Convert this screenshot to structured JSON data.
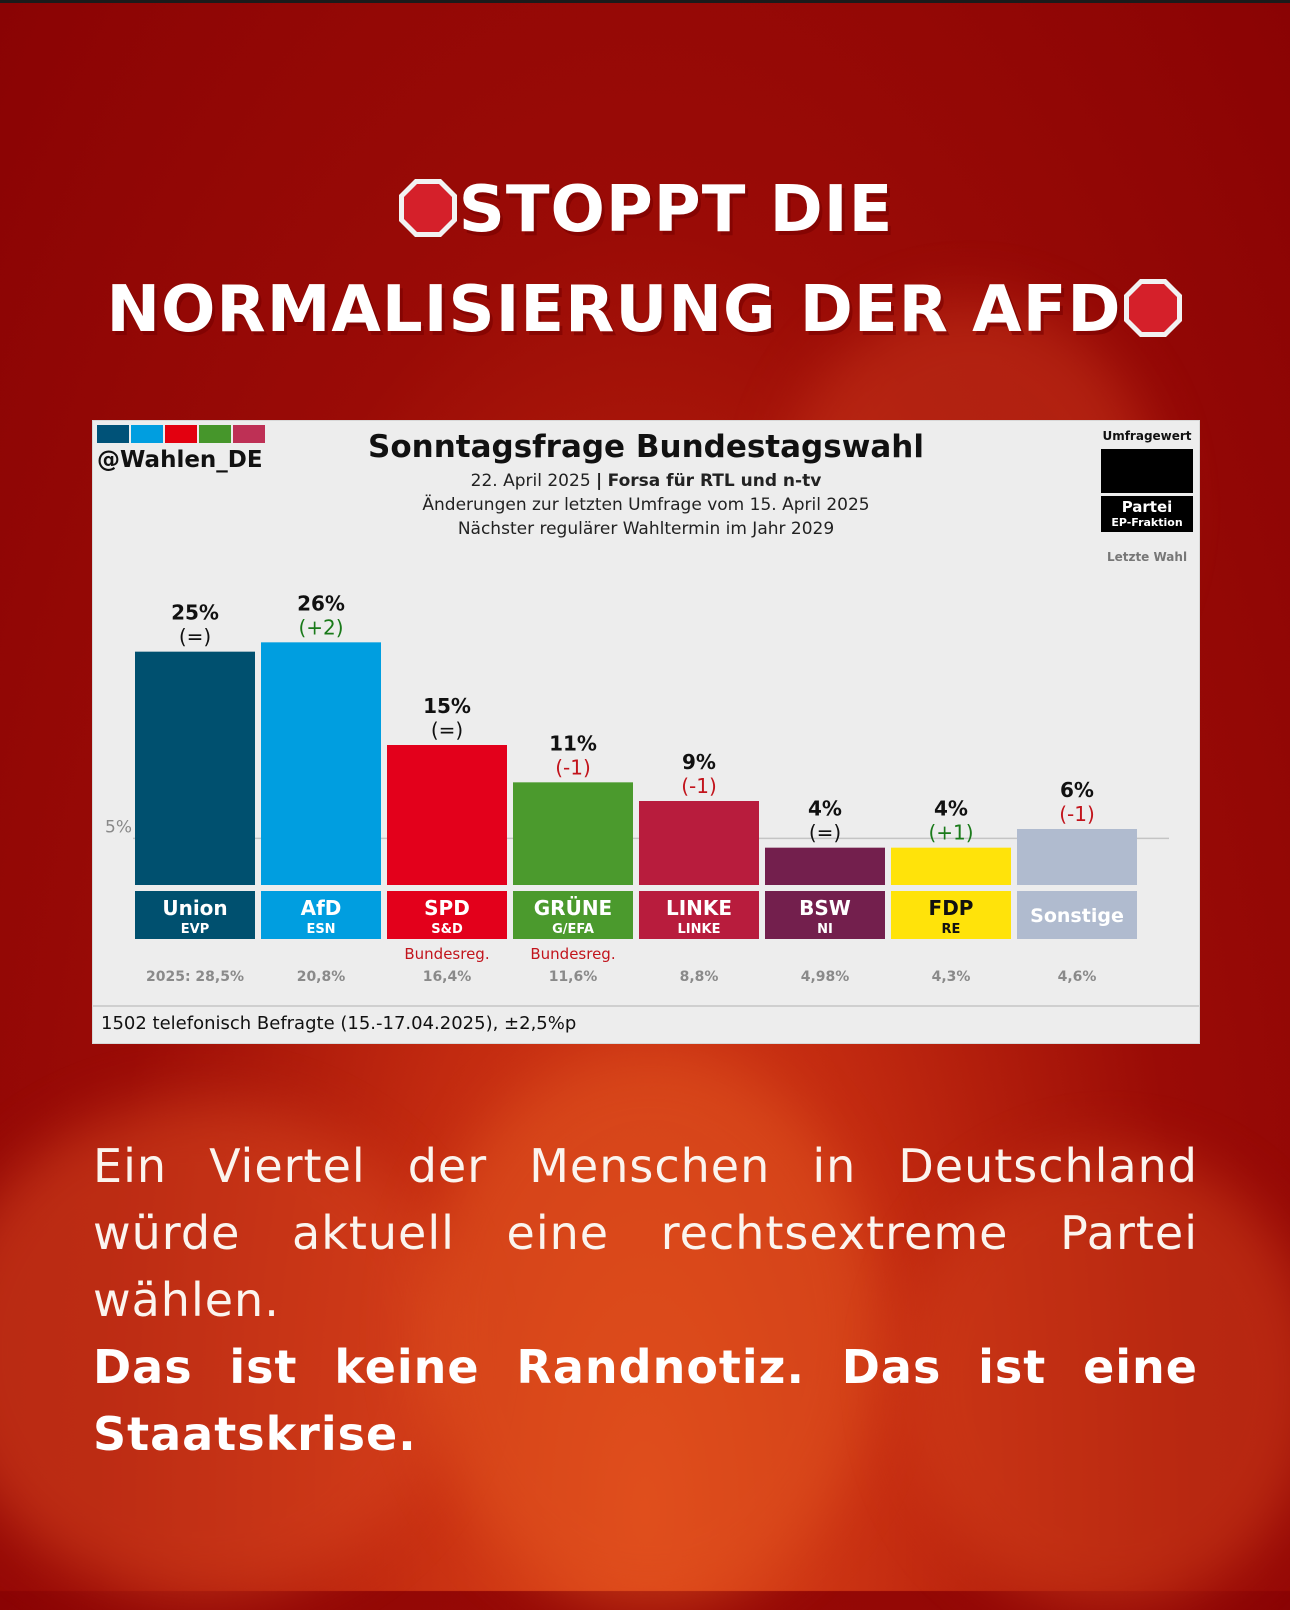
{
  "headline": {
    "line1": "STOPPT DIE",
    "line2": "NORMALISIERUNG DER AFD"
  },
  "chart_header": {
    "handle": "@Wahlen_DE",
    "title": "Sonntagsfrage Bundestagswahl",
    "date": "22. April 2025",
    "separator": "|",
    "source": "Forsa für RTL und n-tv",
    "changes_note": "Änderungen zur letzten Umfrage vom 15. April 2025",
    "next_election": "Nächster regulärer Wahltermin im Jahr 2029",
    "swatch_colors": [
      "#005278",
      "#009ee0",
      "#e3000f",
      "#46962b",
      "#be3055"
    ]
  },
  "legend": {
    "umfragewert": "Umfragewert",
    "partei": "Partei",
    "ep_fraktion": "EP-Fraktion",
    "letzte_wahl": "Letzte Wahl"
  },
  "chart_data": {
    "type": "bar",
    "title": "Sonntagsfrage Bundestagswahl",
    "reference_line": {
      "value": 5,
      "label": "5%"
    },
    "ylim": [
      0,
      27
    ],
    "grid": false,
    "categories": [
      "Union",
      "AfD",
      "SPD",
      "GRÜNE",
      "LINKE",
      "BSW",
      "FDP",
      "Sonstige"
    ],
    "values": [
      25,
      26,
      15,
      11,
      9,
      4,
      4,
      6
    ],
    "value_labels": [
      "25%",
      "26%",
      "15%",
      "11%",
      "9%",
      "4%",
      "4%",
      "6%"
    ],
    "changes": [
      "(=)",
      "(+2)",
      "(=)",
      "(-1)",
      "(-1)",
      "(=)",
      "(+1)",
      "(-1)"
    ],
    "change_sign": [
      "none",
      "plus",
      "none",
      "minus",
      "minus",
      "none",
      "plus",
      "minus"
    ],
    "ep_groups": [
      "EVP",
      "ESN",
      "S&D",
      "G/EFA",
      "LINKE",
      "NI",
      "RE",
      ""
    ],
    "government_note": [
      "",
      "",
      "Bundesreg.",
      "Bundesreg.",
      "",
      "",
      "",
      ""
    ],
    "last_election": [
      "2025: 28,5%",
      "20,8%",
      "16,4%",
      "11,6%",
      "8,8%",
      "4,98%",
      "4,3%",
      "4,6%"
    ],
    "colors": [
      "#00506f",
      "#009ee0",
      "#e3001b",
      "#4b9a2d",
      "#b81c3d",
      "#731f4d",
      "#ffe30a",
      "#b0bbcf"
    ],
    "label_text_colors": [
      "#ffffff",
      "#ffffff",
      "#ffffff",
      "#ffffff",
      "#ffffff",
      "#ffffff",
      "#111111",
      "#ffffff"
    ]
  },
  "chart_footer": "1502 telefonisch Befragte (15.-17.04.2025), ±2,5%p",
  "body": {
    "paragraph": "Ein Viertel der Menschen in Deutschland würde aktuell eine rechtsextreme Partei wählen.",
    "emphasis": "Das ist keine Randnotiz. Das ist eine Staatskrise."
  },
  "theme": {
    "background": "#8a0304",
    "positive_change": "#1a7a1a",
    "negative_change": "#c2141c"
  }
}
